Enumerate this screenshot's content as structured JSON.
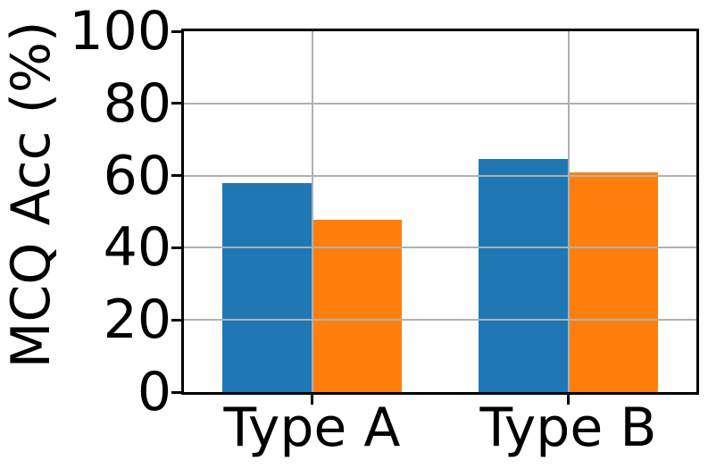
{
  "chart_data": {
    "type": "bar",
    "ylabel": "MCQ Acc (%)",
    "categories": [
      "Type A",
      "Type B"
    ],
    "series": [
      {
        "color": "#1f77b4",
        "values": [
          58.0,
          64.5
        ]
      },
      {
        "color": "#ff7f0e",
        "values": [
          47.7,
          61.0
        ]
      }
    ],
    "yticks": [
      0,
      20,
      40,
      60,
      80,
      100
    ],
    "ylim": [
      0,
      100
    ],
    "xlim": [
      -0.5,
      1.5
    ],
    "bar_width_units": 0.35,
    "grid": true,
    "grid_over_bars": true,
    "legend_position": "none",
    "grid_color": "#b0b0b0",
    "axis_color": "#000000"
  }
}
